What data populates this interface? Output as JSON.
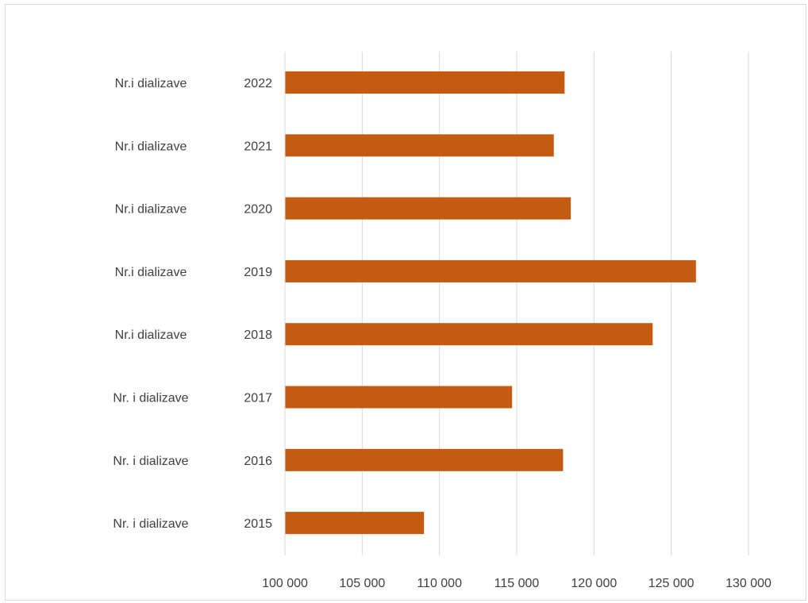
{
  "chart_data": {
    "type": "bar",
    "orientation": "horizontal",
    "categories": [
      {
        "group": "Nr.i dializave",
        "year": "2022"
      },
      {
        "group": "Nr.i dializave",
        "year": "2021"
      },
      {
        "group": "Nr.i dializave",
        "year": "2020"
      },
      {
        "group": "Nr.i dializave",
        "year": "2019"
      },
      {
        "group": "Nr.i dializave",
        "year": "2018"
      },
      {
        "group": "Nr. i dializave",
        "year": "2017"
      },
      {
        "group": "Nr. i dializave",
        "year": "2016"
      },
      {
        "group": "Nr. i dializave",
        "year": "2015"
      }
    ],
    "values": [
      118100,
      117400,
      118500,
      126600,
      123800,
      114700,
      118000,
      109000
    ],
    "xlim": [
      100000,
      130000
    ],
    "xticks": [
      100000,
      105000,
      110000,
      115000,
      120000,
      125000,
      130000
    ],
    "xtick_labels": [
      "100 000",
      "105 000",
      "110 000",
      "115 000",
      "120 000",
      "125 000",
      "130 000"
    ],
    "title": "",
    "xlabel": "",
    "ylabel": "",
    "grid": "vertical",
    "legend": "none",
    "bar_color": "#c55a11",
    "grid_color": "#d9d9d9"
  }
}
